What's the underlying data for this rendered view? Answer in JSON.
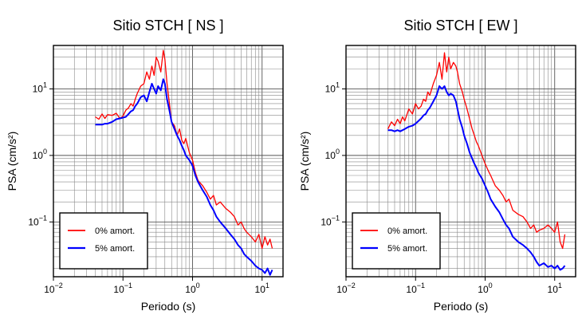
{
  "chart_data": [
    {
      "type": "line",
      "title": "Sitio STCH [ NS ]",
      "xlabel": "Periodo (s)",
      "ylabel": "PSA (cm/s²)",
      "xscale": "log",
      "yscale": "log",
      "xlim": [
        0.01,
        20
      ],
      "ylim": [
        0.015,
        45
      ],
      "grid": true,
      "legend_position": "bottom-left",
      "x_ticks": [
        {
          "base": "10",
          "exp": "−2"
        },
        {
          "base": "10",
          "exp": "−1"
        },
        {
          "base": "10",
          "exp": "0"
        },
        {
          "base": "10",
          "exp": "1"
        }
      ],
      "y_ticks": [
        {
          "base": "10",
          "exp": "−1"
        },
        {
          "base": "10",
          "exp": "0"
        },
        {
          "base": "10",
          "exp": "1"
        }
      ],
      "series": [
        {
          "name": "0% amort.",
          "color": "#ff0000",
          "x": [
            0.04,
            0.045,
            0.05,
            0.055,
            0.06,
            0.07,
            0.08,
            0.09,
            0.1,
            0.11,
            0.12,
            0.13,
            0.14,
            0.15,
            0.16,
            0.18,
            0.2,
            0.22,
            0.24,
            0.26,
            0.28,
            0.3,
            0.32,
            0.35,
            0.38,
            0.4,
            0.43,
            0.47,
            0.5,
            0.55,
            0.6,
            0.65,
            0.7,
            0.75,
            0.8,
            0.9,
            1.0,
            1.1,
            1.2,
            1.4,
            1.6,
            1.8,
            2.0,
            2.2,
            2.5,
            3.0,
            3.5,
            4.0,
            4.5,
            5.0,
            5.5,
            6.0,
            7.0,
            8.0,
            9.0,
            10.0,
            11.0,
            12.0,
            13.0,
            14.0
          ],
          "y": [
            3.8,
            3.5,
            4.2,
            3.6,
            4.1,
            4.0,
            4.3,
            3.6,
            3.9,
            4.8,
            5.2,
            6.0,
            5.5,
            7.0,
            8.5,
            11.0,
            12.0,
            18.0,
            14.0,
            22.0,
            16.0,
            30.0,
            26.0,
            18.0,
            38.0,
            28.0,
            12.0,
            5.5,
            3.2,
            2.8,
            2.0,
            2.5,
            1.7,
            1.5,
            1.8,
            1.1,
            0.85,
            0.55,
            0.42,
            0.35,
            0.28,
            0.22,
            0.25,
            0.18,
            0.2,
            0.16,
            0.14,
            0.12,
            0.09,
            0.1,
            0.08,
            0.07,
            0.06,
            0.05,
            0.065,
            0.04,
            0.06,
            0.045,
            0.055,
            0.04
          ]
        },
        {
          "name": "5% amort.",
          "color": "#0000ff",
          "x": [
            0.04,
            0.045,
            0.05,
            0.055,
            0.06,
            0.07,
            0.08,
            0.09,
            0.1,
            0.11,
            0.12,
            0.13,
            0.14,
            0.15,
            0.16,
            0.18,
            0.2,
            0.22,
            0.24,
            0.26,
            0.28,
            0.3,
            0.32,
            0.35,
            0.38,
            0.4,
            0.43,
            0.47,
            0.5,
            0.55,
            0.6,
            0.65,
            0.7,
            0.75,
            0.8,
            0.9,
            1.0,
            1.1,
            1.2,
            1.4,
            1.6,
            1.8,
            2.0,
            2.2,
            2.5,
            3.0,
            3.5,
            4.0,
            4.5,
            5.0,
            5.5,
            6.0,
            7.0,
            8.0,
            9.0,
            10.0,
            11.0,
            12.0,
            13.0,
            14.0
          ],
          "y": [
            2.9,
            2.9,
            2.9,
            3.0,
            3.0,
            3.2,
            3.5,
            3.6,
            3.7,
            3.8,
            4.2,
            4.6,
            4.8,
            5.5,
            6.0,
            7.5,
            8.0,
            6.5,
            9.0,
            12.0,
            10.0,
            8.5,
            11.0,
            9.5,
            14.0,
            12.0,
            7.0,
            4.5,
            3.2,
            2.5,
            2.0,
            1.7,
            1.4,
            1.2,
            1.0,
            0.85,
            0.7,
            0.5,
            0.4,
            0.3,
            0.24,
            0.18,
            0.15,
            0.12,
            0.1,
            0.08,
            0.065,
            0.055,
            0.045,
            0.04,
            0.033,
            0.03,
            0.026,
            0.022,
            0.02,
            0.019,
            0.017,
            0.02,
            0.016,
            0.019
          ]
        }
      ]
    },
    {
      "type": "line",
      "title": "Sitio STCH [ EW ]",
      "xlabel": "Periodo (s)",
      "ylabel": "PSA (cm/s²)",
      "xscale": "log",
      "yscale": "log",
      "xlim": [
        0.01,
        20
      ],
      "ylim": [
        0.015,
        45
      ],
      "grid": true,
      "legend_position": "bottom-left",
      "x_ticks": [
        {
          "base": "10",
          "exp": "−2"
        },
        {
          "base": "10",
          "exp": "−1"
        },
        {
          "base": "10",
          "exp": "0"
        },
        {
          "base": "10",
          "exp": "1"
        }
      ],
      "y_ticks": [
        {
          "base": "10",
          "exp": "−1"
        },
        {
          "base": "10",
          "exp": "0"
        },
        {
          "base": "10",
          "exp": "1"
        }
      ],
      "series": [
        {
          "name": "0% amort.",
          "color": "#ff0000",
          "x": [
            0.04,
            0.045,
            0.05,
            0.055,
            0.06,
            0.065,
            0.07,
            0.08,
            0.09,
            0.1,
            0.11,
            0.12,
            0.13,
            0.14,
            0.15,
            0.16,
            0.18,
            0.2,
            0.22,
            0.24,
            0.26,
            0.28,
            0.3,
            0.32,
            0.35,
            0.38,
            0.4,
            0.43,
            0.47,
            0.5,
            0.55,
            0.6,
            0.65,
            0.7,
            0.75,
            0.8,
            0.9,
            1.0,
            1.1,
            1.2,
            1.4,
            1.6,
            1.8,
            2.0,
            2.2,
            2.5,
            3.0,
            3.5,
            4.0,
            4.5,
            5.0,
            5.5,
            6.0,
            7.0,
            8.0,
            9.0,
            10.0,
            11.0,
            12.0,
            13.0,
            14.0
          ],
          "y": [
            2.5,
            3.2,
            2.8,
            3.5,
            3.0,
            3.8,
            3.3,
            5.0,
            4.2,
            6.0,
            5.0,
            5.5,
            7.0,
            6.5,
            9.0,
            8.0,
            12.0,
            16.0,
            25.0,
            14.0,
            35.0,
            18.0,
            30.0,
            20.0,
            25.0,
            22.0,
            18.0,
            12.0,
            9.0,
            7.0,
            5.0,
            3.5,
            2.5,
            2.0,
            1.6,
            1.4,
            1.0,
            0.75,
            0.6,
            0.5,
            0.35,
            0.3,
            0.25,
            0.2,
            0.22,
            0.15,
            0.13,
            0.12,
            0.1,
            0.08,
            0.09,
            0.07,
            0.075,
            0.08,
            0.09,
            0.08,
            0.07,
            0.1,
            0.05,
            0.04,
            0.065
          ]
        },
        {
          "name": "5% amort.",
          "color": "#0000ff",
          "x": [
            0.04,
            0.045,
            0.05,
            0.055,
            0.06,
            0.065,
            0.07,
            0.08,
            0.09,
            0.1,
            0.11,
            0.12,
            0.13,
            0.14,
            0.15,
            0.16,
            0.18,
            0.2,
            0.22,
            0.24,
            0.26,
            0.28,
            0.3,
            0.32,
            0.35,
            0.38,
            0.4,
            0.43,
            0.47,
            0.5,
            0.55,
            0.6,
            0.65,
            0.7,
            0.75,
            0.8,
            0.9,
            1.0,
            1.1,
            1.2,
            1.4,
            1.6,
            1.8,
            2.0,
            2.2,
            2.5,
            3.0,
            3.5,
            4.0,
            4.5,
            5.0,
            5.5,
            6.0,
            7.0,
            8.0,
            9.0,
            10.0,
            11.0,
            12.0,
            13.0,
            14.0
          ],
          "y": [
            2.4,
            2.4,
            2.3,
            2.4,
            2.3,
            2.4,
            2.5,
            2.7,
            2.8,
            3.0,
            3.3,
            3.6,
            4.0,
            4.2,
            4.8,
            5.2,
            6.5,
            8.0,
            11.0,
            10.0,
            11.0,
            9.0,
            8.0,
            8.5,
            8.0,
            6.5,
            5.0,
            3.5,
            2.6,
            2.0,
            1.5,
            1.1,
            0.9,
            0.75,
            0.65,
            0.55,
            0.45,
            0.35,
            0.28,
            0.22,
            0.17,
            0.14,
            0.11,
            0.09,
            0.08,
            0.06,
            0.05,
            0.045,
            0.04,
            0.035,
            0.03,
            0.025,
            0.022,
            0.024,
            0.021,
            0.022,
            0.02,
            0.022,
            0.019,
            0.02,
            0.022
          ]
        }
      ]
    }
  ]
}
